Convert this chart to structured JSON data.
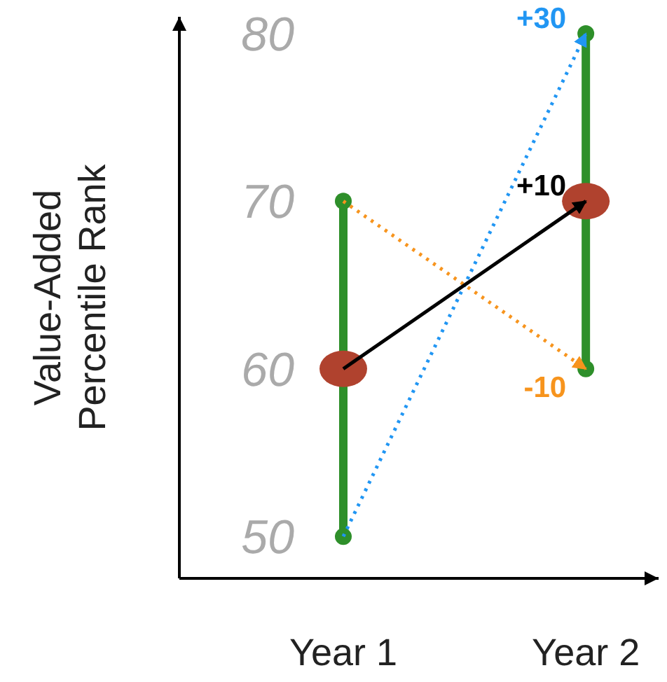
{
  "chart_data": {
    "type": "line",
    "ylabel": "Value-Added Percentile Rank",
    "categories": [
      "Year 1",
      "Year 2"
    ],
    "ylim": [
      47.5,
      81
    ],
    "yticks": [
      50,
      60,
      70,
      80
    ],
    "grid": false,
    "series": [
      {
        "color": "#2e8f2a",
        "marker": "circle",
        "x": [
          "Year 1",
          "Year 1"
        ],
        "values": [
          50,
          70
        ]
      },
      {
        "color": "#2e8f2a",
        "marker": "circle",
        "x": [
          "Year 2",
          "Year 2"
        ],
        "values": [
          60,
          80
        ]
      },
      {
        "type": "scatter",
        "color": "#b0422e",
        "marker": "circle",
        "values": [
          60,
          70
        ]
      },
      {
        "color": "#2196f3",
        "line_style": "dotted",
        "values": [
          50,
          80
        ]
      },
      {
        "color": "#f7941d",
        "line_style": "dotted",
        "values": [
          70,
          60
        ]
      },
      {
        "color": "#000000",
        "line_style": "solid",
        "values": [
          60,
          70
        ]
      }
    ],
    "annotations": [
      {
        "text": "+30",
        "x": "Year 2",
        "y": 80
      },
      {
        "text": "+10",
        "x": "Year 2",
        "y": 70
      },
      {
        "text": "-10",
        "x": "Year 2",
        "y": 60
      }
    ]
  }
}
